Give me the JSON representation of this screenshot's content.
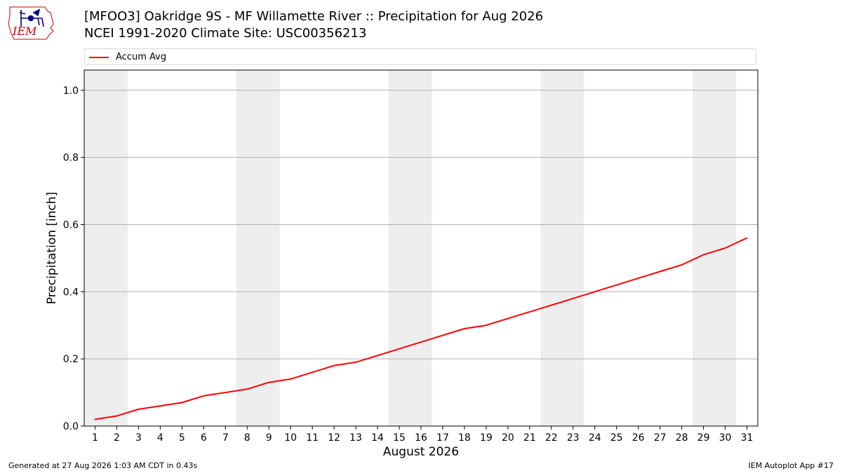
{
  "header": {
    "title_line1": "[MFOO3] Oakridge 9S - MF Willamette River :: Precipitation for Aug 2026",
    "title_line2": "NCEI 1991-2020 Climate Site: USC00356213",
    "logo_text": "IEM"
  },
  "footer": {
    "generated": "Generated at 27 Aug 2026 1:03 AM CDT in 0.43s",
    "app": "IEM Autoplot App #17"
  },
  "colors": {
    "line": "#ff0000",
    "weekend_shade": "#eeeeee",
    "grid": "#b0b0b0",
    "logo": "#cc0000"
  },
  "chart_data": {
    "type": "line",
    "xlabel": "August 2026",
    "ylabel": "Precipitation [inch]",
    "xlim": [
      0.5,
      31.5
    ],
    "ylim": [
      0.0,
      1.06
    ],
    "x_ticks": [
      1,
      2,
      3,
      4,
      5,
      6,
      7,
      8,
      9,
      10,
      11,
      12,
      13,
      14,
      15,
      16,
      17,
      18,
      19,
      20,
      21,
      22,
      23,
      24,
      25,
      26,
      27,
      28,
      29,
      30,
      31
    ],
    "y_ticks": [
      0.0,
      0.2,
      0.4,
      0.6,
      0.8,
      1.0
    ],
    "y_tick_labels": [
      "0.0",
      "0.2",
      "0.4",
      "0.6",
      "0.8",
      "1.0"
    ],
    "grid": "horizontal",
    "legend_position": "top",
    "shaded_days": [
      [
        1,
        2
      ],
      [
        8,
        9
      ],
      [
        15,
        16
      ],
      [
        22,
        23
      ],
      [
        29,
        30
      ]
    ],
    "series": [
      {
        "name": "Accum Avg",
        "x": [
          1,
          2,
          3,
          4,
          5,
          6,
          7,
          8,
          9,
          10,
          11,
          12,
          13,
          14,
          15,
          16,
          17,
          18,
          19,
          20,
          21,
          22,
          23,
          24,
          25,
          26,
          27,
          28,
          29,
          30,
          31
        ],
        "values": [
          0.02,
          0.03,
          0.05,
          0.06,
          0.07,
          0.09,
          0.1,
          0.11,
          0.13,
          0.14,
          0.16,
          0.18,
          0.19,
          0.21,
          0.23,
          0.25,
          0.27,
          0.29,
          0.3,
          0.32,
          0.34,
          0.36,
          0.38,
          0.4,
          0.42,
          0.44,
          0.46,
          0.48,
          0.51,
          0.53,
          0.56
        ]
      }
    ]
  }
}
